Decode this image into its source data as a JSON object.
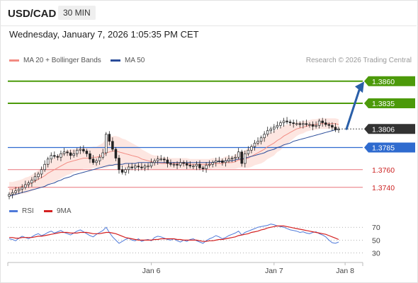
{
  "header": {
    "symbol": "USD/CAD",
    "timeframe": "30 MIN"
  },
  "datetime": "Wednesday, January 7, 2026 1:05:35 PM CET",
  "legend": {
    "bollinger": "MA 20 + Bollinger Bands",
    "ma50": "MA 50"
  },
  "credit": "Research © 2026 Trading Central",
  "rsi_legend": {
    "rsi": "RSI",
    "ma": "9MA"
  },
  "colors": {
    "resistance": "#4c9a0a",
    "support": "#2f6bcf",
    "target_line": "#e8747a",
    "target_text": "#cc2222",
    "price_tag": "#333333",
    "band_fill": "#fde3de",
    "ma20": "#f28b82",
    "ma50": "#2a4c9a",
    "rsi": "#4f7ad9",
    "rsi_ma": "#d42020",
    "arrow": "#2a5fa8"
  },
  "chart_data": {
    "type": "candlestick",
    "ylim": [
      1.3715,
      1.3875
    ],
    "levels": [
      {
        "value": 1.386,
        "label": "1.3860",
        "kind": "resistance"
      },
      {
        "value": 1.3835,
        "label": "1.3835",
        "kind": "resistance"
      },
      {
        "value": 1.3806,
        "label": "1.3806",
        "kind": "price"
      },
      {
        "value": 1.3785,
        "label": "1.3785",
        "kind": "support"
      },
      {
        "value": 1.376,
        "label": "1.3760",
        "kind": "target"
      },
      {
        "value": 1.374,
        "label": "1.3740",
        "kind": "target"
      }
    ],
    "x_ticks": [
      {
        "index": 44,
        "label": "Jan 6"
      },
      {
        "index": 82,
        "label": "Jan 7"
      },
      {
        "index": 104,
        "label": "Jan 8"
      }
    ],
    "closes": [
      1.3732,
      1.3734,
      1.3736,
      1.3738,
      1.374,
      1.3743,
      1.3745,
      1.3748,
      1.3752,
      1.3755,
      1.376,
      1.3766,
      1.3772,
      1.3776,
      1.3775,
      1.3774,
      1.3778,
      1.378,
      1.3779,
      1.3776,
      1.3778,
      1.3782,
      1.3783,
      1.3781,
      1.3778,
      1.3772,
      1.3768,
      1.377,
      1.3774,
      1.3779,
      1.38,
      1.3792,
      1.3783,
      1.3773,
      1.376,
      1.3757,
      1.376,
      1.3763,
      1.3762,
      1.3764,
      1.3763,
      1.3762,
      1.3764,
      1.3764,
      1.3768,
      1.377,
      1.3772,
      1.3772,
      1.3771,
      1.3767,
      1.3766,
      1.3766,
      1.3765,
      1.3768,
      1.3767,
      1.3765,
      1.3764,
      1.3764,
      1.3766,
      1.3762,
      1.3761,
      1.3765,
      1.3766,
      1.3768,
      1.377,
      1.377,
      1.3768,
      1.377,
      1.3772,
      1.3773,
      1.3774,
      1.378,
      1.3767,
      1.3778,
      1.3782,
      1.3786,
      1.379,
      1.3792,
      1.3796,
      1.38,
      1.3804,
      1.3806,
      1.3808,
      1.381,
      1.3813,
      1.3815,
      1.3814,
      1.3813,
      1.3812,
      1.3812,
      1.3811,
      1.3812,
      1.3811,
      1.3811,
      1.3809,
      1.381,
      1.3815,
      1.3813,
      1.3811,
      1.381,
      1.3808,
      1.3805,
      1.3806
    ],
    "ma20": [
      1.3738,
      1.3738,
      1.3739,
      1.374,
      1.3741,
      1.3742,
      1.3743,
      1.3745,
      1.3747,
      1.3749,
      1.3751,
      1.3753,
      1.3756,
      1.3758,
      1.376,
      1.3762,
      1.3764,
      1.3766,
      1.3768,
      1.3769,
      1.377,
      1.3771,
      1.3772,
      1.3773,
      1.3773,
      1.3773,
      1.3774,
      1.3774,
      1.3775,
      1.3776,
      1.3779,
      1.378,
      1.3781,
      1.3781,
      1.378,
      1.3779,
      1.3778,
      1.3777,
      1.3776,
      1.3775,
      1.3774,
      1.3772,
      1.3771,
      1.377,
      1.3769,
      1.3768,
      1.3768,
      1.3767,
      1.3767,
      1.3767,
      1.3767,
      1.3767,
      1.3767,
      1.3767,
      1.3767,
      1.3767,
      1.3766,
      1.3766,
      1.3766,
      1.3766,
      1.3766,
      1.3766,
      1.3766,
      1.3767,
      1.3767,
      1.3767,
      1.3767,
      1.3768,
      1.3768,
      1.3768,
      1.3769,
      1.3771,
      1.3771,
      1.3772,
      1.3773,
      1.3775,
      1.3777,
      1.3779,
      1.3781,
      1.3783,
      1.3786,
      1.3788,
      1.379,
      1.3793,
      1.3795,
      1.3798,
      1.38,
      1.3802,
      1.3804,
      1.3806,
      1.3807,
      1.3808,
      1.3809,
      1.381,
      1.3811,
      1.3811,
      1.3812,
      1.3812,
      1.3812,
      1.3812,
      1.3812,
      1.3812,
      1.3811
    ],
    "ma50": [
      1.373,
      1.3731,
      1.3732,
      1.3733,
      1.3734,
      1.3735,
      1.3736,
      1.3737,
      1.3738,
      1.3739,
      1.374,
      1.3741,
      1.3743,
      1.3744,
      1.3745,
      1.3747,
      1.3748,
      1.375,
      1.3751,
      1.3752,
      1.3754,
      1.3755,
      1.3756,
      1.3757,
      1.3758,
      1.3759,
      1.376,
      1.3761,
      1.3762,
      1.3763,
      1.3764,
      1.3765,
      1.3765,
      1.3766,
      1.3766,
      1.3766,
      1.3767,
      1.3767,
      1.3767,
      1.3767,
      1.3768,
      1.3768,
      1.3768,
      1.3768,
      1.3768,
      1.3768,
      1.3768,
      1.3768,
      1.3768,
      1.3768,
      1.3768,
      1.3768,
      1.3768,
      1.3768,
      1.3768,
      1.3768,
      1.3768,
      1.3768,
      1.3768,
      1.3768,
      1.3768,
      1.3768,
      1.3768,
      1.3768,
      1.3769,
      1.3769,
      1.3769,
      1.377,
      1.377,
      1.377,
      1.3771,
      1.3772,
      1.3772,
      1.3773,
      1.3774,
      1.3775,
      1.3776,
      1.3777,
      1.3778,
      1.3779,
      1.3781,
      1.3782,
      1.3783,
      1.3785,
      1.3786,
      1.3788,
      1.3789,
      1.379,
      1.3792,
      1.3793,
      1.3794,
      1.3795,
      1.3796,
      1.3797,
      1.3798,
      1.3799,
      1.38,
      1.3801,
      1.3802,
      1.3803,
      1.3804,
      1.3805,
      1.3806
    ],
    "band_width": [
      8,
      8,
      8,
      8,
      8,
      9,
      9,
      9,
      10,
      10,
      11,
      12,
      13,
      13,
      14,
      14,
      14,
      14,
      14,
      14,
      13,
      13,
      13,
      12,
      12,
      12,
      12,
      12,
      13,
      14,
      17,
      17,
      17,
      17,
      17,
      16,
      16,
      15,
      14,
      13,
      12,
      11,
      10,
      9,
      8,
      8,
      8,
      7,
      7,
      7,
      6,
      6,
      6,
      6,
      6,
      6,
      6,
      6,
      6,
      6,
      6,
      6,
      6,
      6,
      6,
      6,
      6,
      7,
      7,
      7,
      8,
      9,
      9,
      10,
      11,
      12,
      12,
      13,
      14,
      14,
      14,
      14,
      14,
      13,
      13,
      12,
      11,
      10,
      9,
      8,
      7,
      7,
      6,
      6,
      6,
      6,
      6,
      6,
      6,
      6,
      6,
      6,
      6
    ],
    "forecast_arrow": {
      "from_index": 104,
      "from_value": 1.3806,
      "to_value": 1.3858
    },
    "rsi": {
      "ylim": [
        25,
        78
      ],
      "ticks": [
        70,
        50,
        30
      ],
      "values": [
        52,
        51,
        49,
        53,
        56,
        54,
        52,
        55,
        58,
        60,
        57,
        59,
        62,
        64,
        61,
        63,
        65,
        62,
        60,
        58,
        61,
        64,
        66,
        63,
        60,
        57,
        55,
        59,
        62,
        65,
        70,
        62,
        55,
        50,
        45,
        48,
        51,
        53,
        50,
        49,
        52,
        48,
        50,
        51,
        49,
        54,
        56,
        55,
        53,
        51,
        50,
        52,
        49,
        47,
        50,
        48,
        51,
        52,
        49,
        47,
        45,
        49,
        52,
        54,
        57,
        55,
        52,
        54,
        57,
        59,
        61,
        64,
        58,
        62,
        64,
        66,
        68,
        70,
        71,
        72,
        73,
        75,
        74,
        72,
        71,
        70,
        68,
        66,
        65,
        64,
        62,
        63,
        61,
        60,
        62,
        63,
        60,
        58,
        55,
        50,
        46,
        45,
        47
      ],
      "ma": [
        54,
        54,
        53,
        53,
        54,
        54,
        54,
        54,
        55,
        56,
        56,
        57,
        58,
        59,
        60,
        61,
        62,
        62,
        62,
        61,
        61,
        61,
        62,
        62,
        62,
        61,
        60,
        60,
        60,
        61,
        62,
        62,
        61,
        60,
        58,
        56,
        54,
        53,
        52,
        51,
        50,
        50,
        50,
        50,
        50,
        51,
        51,
        52,
        52,
        52,
        52,
        52,
        51,
        51,
        50,
        50,
        50,
        50,
        50,
        49,
        48,
        48,
        49,
        49,
        50,
        51,
        51,
        52,
        53,
        54,
        55,
        57,
        58,
        59,
        60,
        62,
        63,
        64,
        66,
        67,
        69,
        70,
        71,
        72,
        72,
        72,
        71,
        70,
        69,
        68,
        67,
        66,
        65,
        64,
        63,
        62,
        61,
        60,
        59,
        57,
        55,
        53,
        51
      ]
    }
  }
}
